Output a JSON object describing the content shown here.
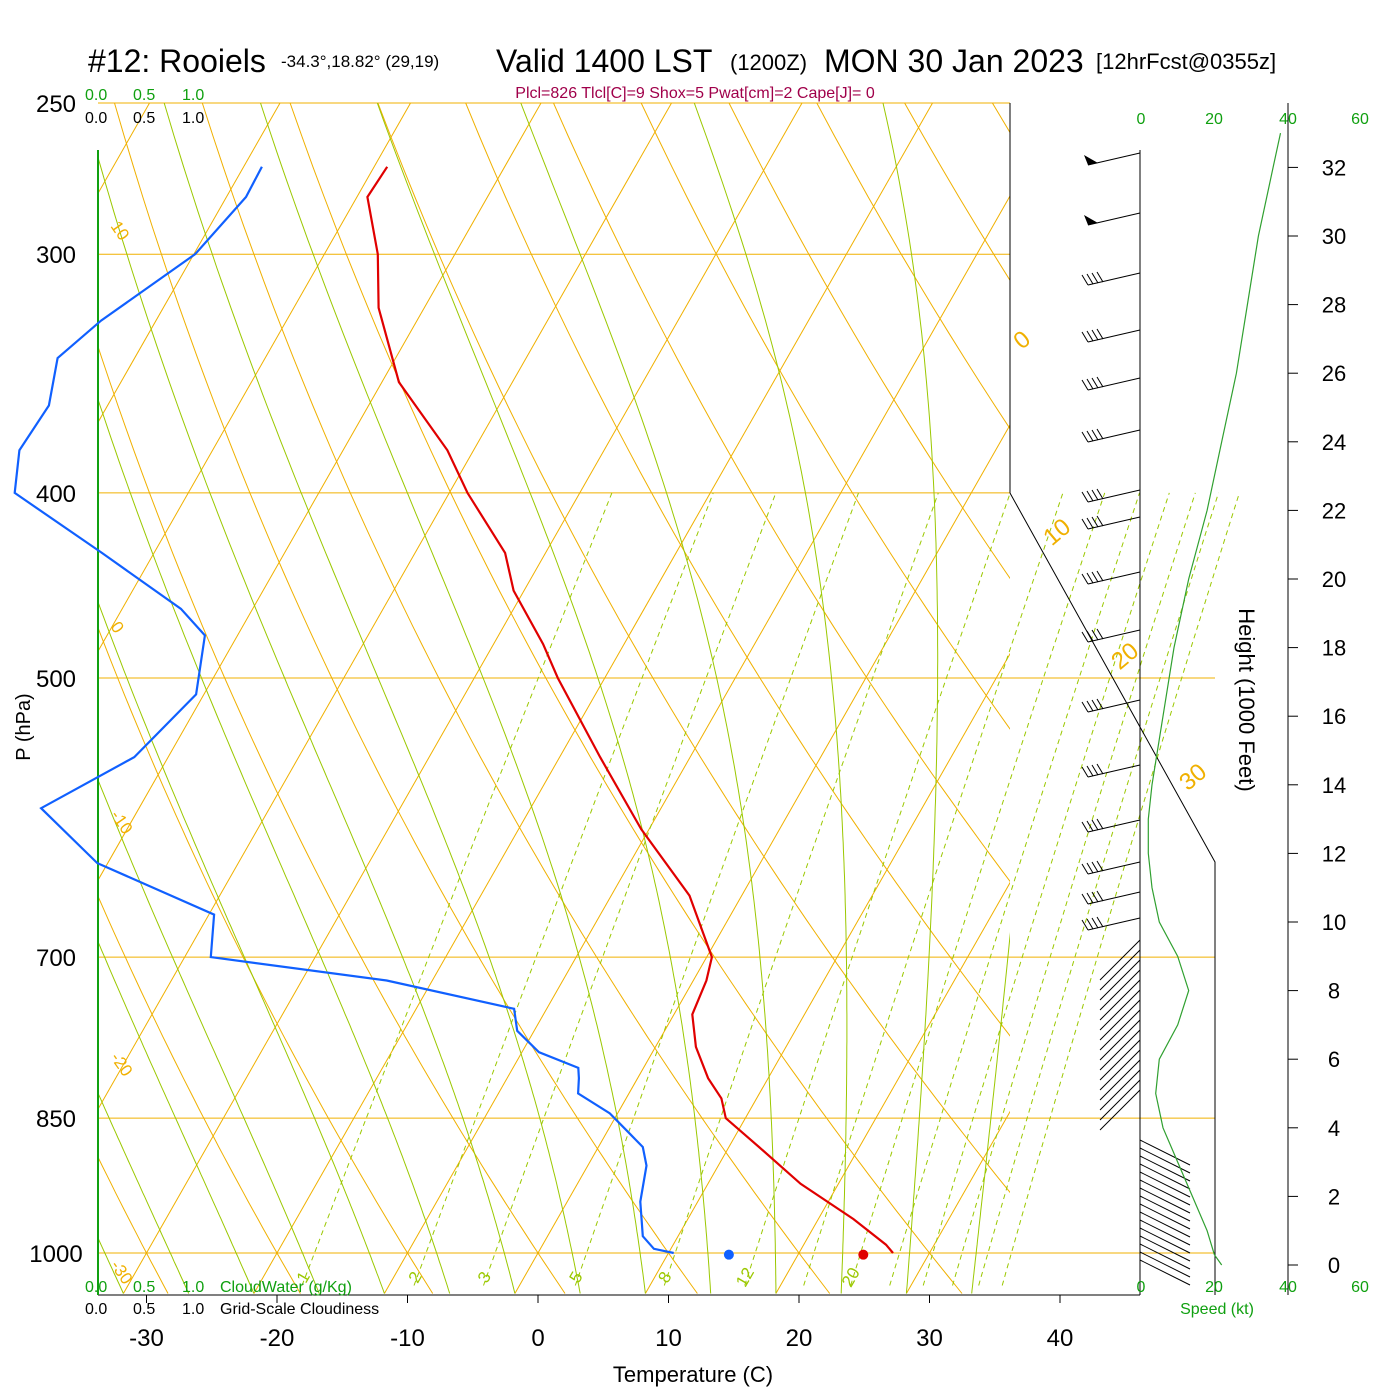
{
  "title": {
    "station": "#12: Rooiels",
    "coords": "-34.3°,18.82° (29,19)",
    "valid": "Valid 1400 LST",
    "zulu": "(1200Z)",
    "date": "MON 30 Jan 2023",
    "fcst": "[12hrFcst@0355z]"
  },
  "indices": "Plcl=826 Tlcl[C]=9 Shox=5 Pwat[cm]=2 Cape[J]= 0",
  "colors": {
    "isobar": "#f0b000",
    "isotherm": "#f0b000",
    "dry_adiabat": "#f0b000",
    "moist_adiabat": "#9bc800",
    "mixing_ratio": "#9bc800",
    "temperature": "#e00000",
    "dewpoint": "#1060ff",
    "cloud_axis": "#10a010",
    "height_curve": "#30a030",
    "indices_text": "#a0004a",
    "label_text": "#000000"
  },
  "cloud_scale": {
    "top_green": [
      "0.0",
      "0.5",
      "1.0"
    ],
    "top_black": [
      "0.0",
      "0.5",
      "1.0"
    ],
    "bottom_green": [
      "0.0",
      "0.5",
      "1.0"
    ],
    "bottom_black": [
      "0.0",
      "0.5",
      "1.0"
    ],
    "cloudwater_label": "CloudWater (g/Kg)",
    "cloudiness_label": "Grid-Scale Cloudiness"
  },
  "speed_axis": {
    "ticks_top": [
      "0",
      "20",
      "40",
      "60"
    ],
    "ticks_bottom": [
      "0",
      "20",
      "40",
      "60"
    ],
    "label": "Speed (kt)"
  },
  "height_axis": {
    "label": "Height (1000 Feet)",
    "ticks": [
      "0",
      "2",
      "4",
      "6",
      "8",
      "10",
      "12",
      "14",
      "16",
      "18",
      "20",
      "22",
      "24",
      "26",
      "28",
      "30",
      "32"
    ]
  },
  "chart_data": {
    "type": "line",
    "chart_kind": "skew-T log-p sounding",
    "xlabel": "Temperature (C)",
    "ylabel": "P (hPa)",
    "x_ticks": [
      "-30",
      "-20",
      "-10",
      "0",
      "10",
      "20",
      "30",
      "40"
    ],
    "y_ticks": [
      "250",
      "300",
      "400",
      "500",
      "700",
      "850",
      "1000"
    ],
    "y_scale": "log",
    "ylim": [
      1020,
      250
    ],
    "dry_adiabat_labels": [
      "10",
      "0",
      "-10",
      "-20",
      "-30"
    ],
    "dry_adiabat_right_labels": [
      "0",
      "10",
      "20",
      "30"
    ],
    "mixing_ratio_labels": [
      "1",
      "2",
      "3",
      "5",
      "8",
      "12",
      "20"
    ],
    "series": [
      {
        "key": "temperature",
        "points": [
          [
            270,
            -59.0
          ],
          [
            280,
            -59.2
          ],
          [
            300,
            -55.9
          ],
          [
            320,
            -53.5
          ],
          [
            350,
            -48.7
          ],
          [
            380,
            -42.0
          ],
          [
            400,
            -38.6
          ],
          [
            430,
            -33.1
          ],
          [
            450,
            -30.8
          ],
          [
            480,
            -26.2
          ],
          [
            500,
            -23.6
          ],
          [
            550,
            -16.9
          ],
          [
            600,
            -10.6
          ],
          [
            650,
            -4.0
          ],
          [
            700,
            0.4
          ],
          [
            720,
            1.0
          ],
          [
            750,
            1.4
          ],
          [
            780,
            3.1
          ],
          [
            810,
            5.4
          ],
          [
            830,
            7.3
          ],
          [
            850,
            8.5
          ],
          [
            880,
            12.3
          ],
          [
            920,
            17.1
          ],
          [
            960,
            22.7
          ],
          [
            990,
            26.3
          ],
          [
            1000,
            27.2
          ]
        ]
      },
      {
        "key": "dewpoint",
        "points": [
          [
            270,
            -68.6
          ],
          [
            280,
            -68.5
          ],
          [
            300,
            -69.9
          ],
          [
            325,
            -74.2
          ],
          [
            340,
            -75.9
          ],
          [
            360,
            -74.5
          ],
          [
            380,
            -74.8
          ],
          [
            400,
            -73.3
          ],
          [
            430,
            -64.0
          ],
          [
            460,
            -55.5
          ],
          [
            475,
            -52.5
          ],
          [
            510,
            -50.6
          ],
          [
            550,
            -52.6
          ],
          [
            585,
            -57.5
          ],
          [
            625,
            -50.8
          ],
          [
            665,
            -39.6
          ],
          [
            700,
            -38.0
          ],
          [
            720,
            -23.5
          ],
          [
            745,
            -12.5
          ],
          [
            765,
            -11.3
          ],
          [
            785,
            -8.7
          ],
          [
            800,
            -5.0
          ],
          [
            810,
            -4.5
          ],
          [
            825,
            -3.9
          ],
          [
            845,
            -0.6
          ],
          [
            865,
            1.7
          ],
          [
            880,
            3.4
          ],
          [
            900,
            4.5
          ],
          [
            940,
            5.6
          ],
          [
            980,
            7.3
          ],
          [
            995,
            8.7
          ],
          [
            1000,
            10.4
          ]
        ]
      }
    ],
    "surface_points": [
      {
        "key": "temperature",
        "p": 1002,
        "t": 25.0
      },
      {
        "key": "dewpoint",
        "p": 1002,
        "t": 14.7
      }
    ],
    "height_curve_kft": [
      [
        0,
        22
      ],
      [
        0.3,
        20
      ],
      [
        1,
        18
      ],
      [
        2,
        14
      ],
      [
        3,
        10
      ],
      [
        4,
        6
      ],
      [
        5,
        4
      ],
      [
        6,
        5
      ],
      [
        7,
        10
      ],
      [
        8,
        13
      ],
      [
        9,
        10
      ],
      [
        10,
        5
      ],
      [
        11,
        3
      ],
      [
        12,
        2
      ],
      [
        13,
        2
      ],
      [
        14,
        3
      ],
      [
        16,
        6
      ],
      [
        18,
        9
      ],
      [
        20,
        13
      ],
      [
        22,
        18
      ],
      [
        24,
        22
      ],
      [
        26,
        26
      ],
      [
        28,
        29
      ],
      [
        30,
        32
      ],
      [
        32,
        36
      ],
      [
        33,
        38
      ]
    ]
  }
}
